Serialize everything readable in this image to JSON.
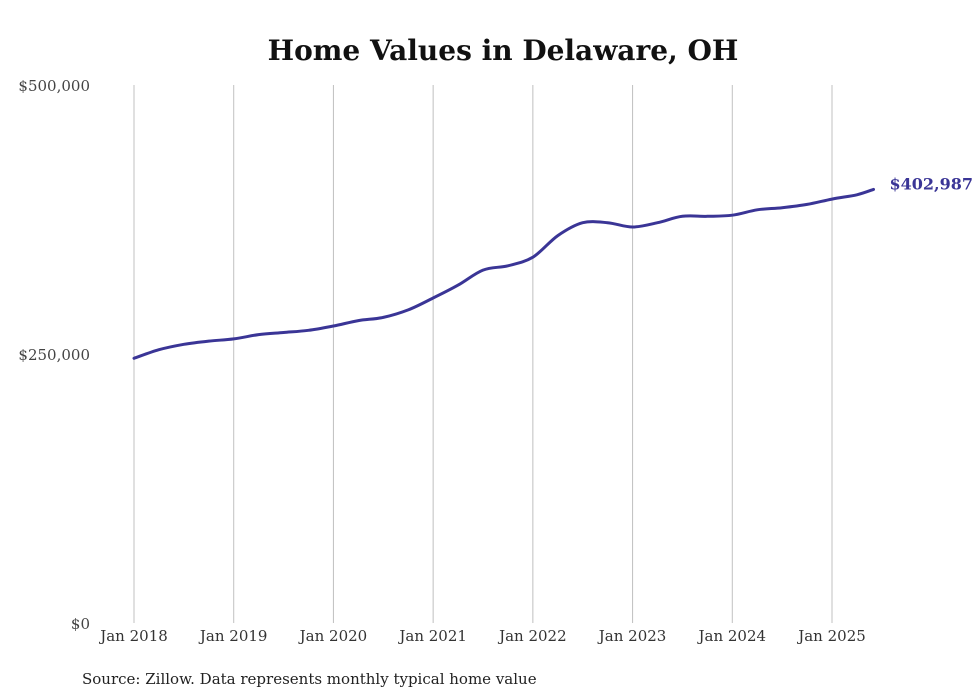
{
  "chart_data": {
    "type": "line",
    "title": "Home Values in Delaware, OH",
    "xlabel": "",
    "ylabel": "",
    "ylim": [
      0,
      500000
    ],
    "y_ticks": [
      "$0",
      "$250,000",
      "$500,000"
    ],
    "y_tick_values": [
      0,
      250000,
      500000
    ],
    "x_ticks": [
      "Jan 2018",
      "Jan 2019",
      "Jan 2020",
      "Jan 2021",
      "Jan 2022",
      "Jan 2023",
      "Jan 2024",
      "Jan 2025"
    ],
    "grid": "vertical",
    "line_color": "#3a3596",
    "end_label": "$402,987",
    "source": "Source: Zillow. Data represents monthly typical home value",
    "x": [
      "2018-01",
      "2018-04",
      "2018-07",
      "2018-10",
      "2019-01",
      "2019-04",
      "2019-07",
      "2019-10",
      "2020-01",
      "2020-04",
      "2020-07",
      "2020-10",
      "2021-01",
      "2021-04",
      "2021-07",
      "2021-10",
      "2022-01",
      "2022-04",
      "2022-07",
      "2022-10",
      "2023-01",
      "2023-04",
      "2023-07",
      "2023-10",
      "2024-01",
      "2024-04",
      "2024-07",
      "2024-10",
      "2025-01",
      "2025-04",
      "2025-06"
    ],
    "series": [
      {
        "values": [
          246000,
          254000,
          259000,
          262000,
          264000,
          268000,
          270000,
          272000,
          276000,
          281000,
          284000,
          291000,
          302000,
          314000,
          328000,
          332000,
          340000,
          360000,
          372000,
          372000,
          368000,
          372000,
          378000,
          378000,
          379000,
          384000,
          386000,
          389000,
          394000,
          398000,
          402987
        ]
      }
    ]
  }
}
